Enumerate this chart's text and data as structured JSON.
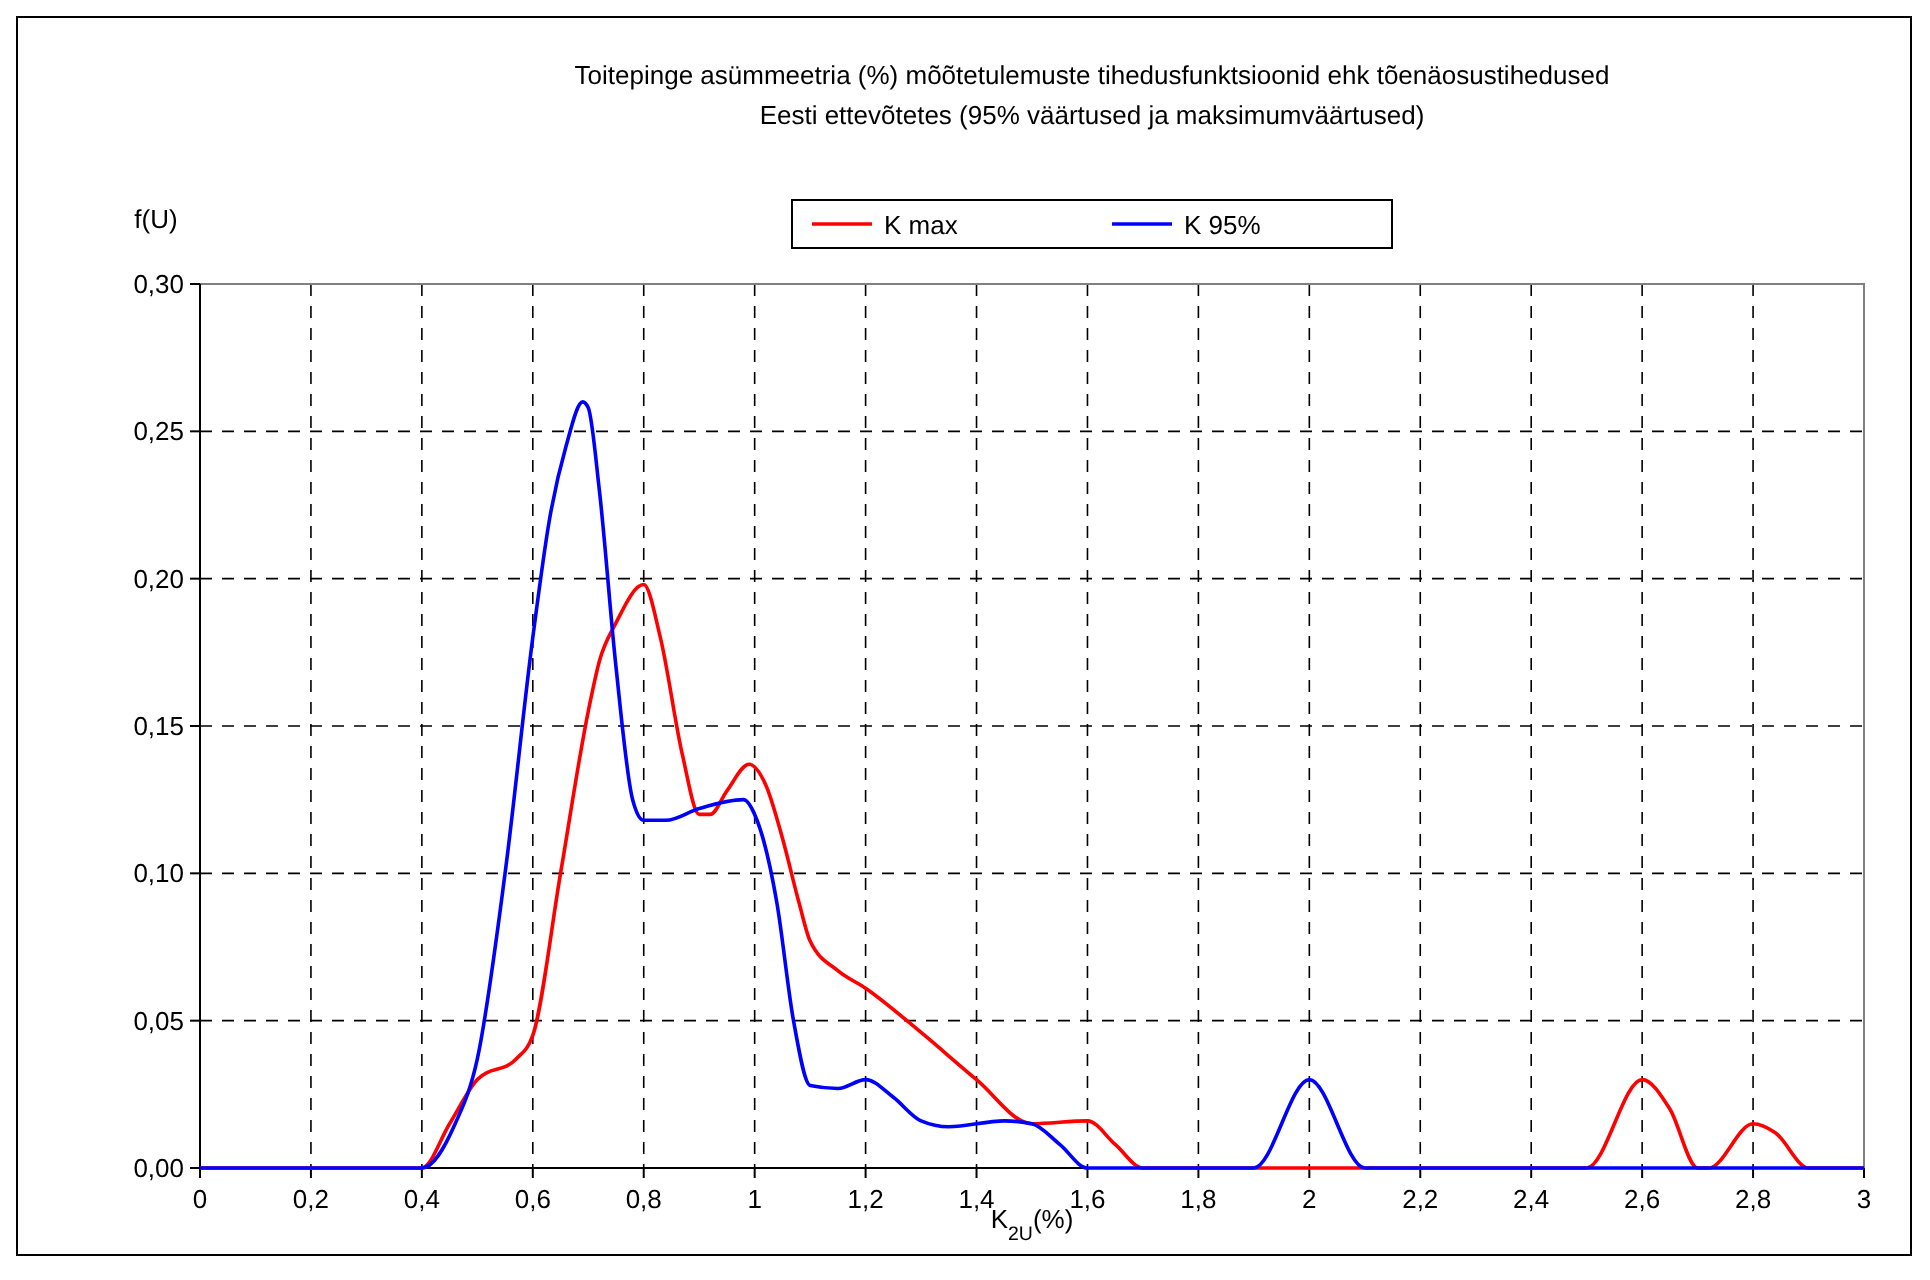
{
  "chart_data": {
    "type": "line",
    "title": "Toitepinge asümmeetria (%) mõõtetulemuste tihedusfunktsioonid ehk tõenäosustihedused\nEesti ettevõtetes (95% väärtused ja maksimumväärtused)",
    "xlabel": "K$_{2U}$(%)",
    "ylabel": "f(U)",
    "xlim": [
      0,
      3
    ],
    "ylim": [
      0,
      0.3
    ],
    "xticks": [
      0,
      {
        "value": 0.2,
        "label": "0,2"
      },
      {
        "value": 0.4,
        "label": "0,4"
      },
      {
        "value": 0.6,
        "label": "0,6"
      },
      {
        "value": 0.8,
        "label": "0,8"
      },
      1,
      {
        "value": 1.2,
        "label": "1,2"
      },
      {
        "value": 1.4,
        "label": "1,4"
      },
      {
        "value": 1.6,
        "label": "1,6"
      },
      {
        "value": 1.8,
        "label": "1,8"
      },
      2,
      {
        "value": 2.2,
        "label": "2,2"
      },
      {
        "value": 2.4,
        "label": "2,4"
      },
      {
        "value": 2.6,
        "label": "2,6"
      },
      {
        "value": 2.8,
        "label": "2,8"
      },
      3
    ],
    "yticks": [
      {
        "value": 0,
        "label": "0,00"
      },
      {
        "value": 0.05,
        "label": "0,05"
      },
      {
        "value": 0.1,
        "label": "0,10"
      },
      {
        "value": 0.15,
        "label": "0,15"
      },
      {
        "value": 0.2,
        "label": "0,20"
      },
      {
        "value": 0.25,
        "label": "0,25"
      },
      {
        "value": 0.3,
        "label": "0,30"
      }
    ],
    "grid": true,
    "legend": "top",
    "marker": "none",
    "line_style": "solid",
    "series": [
      {
        "name": "K max",
        "color": "#ff0000",
        "x": [
          0,
          0.3,
          0.4,
          0.45,
          0.5,
          0.57,
          0.6,
          0.65,
          0.7,
          0.72,
          0.75,
          0.8,
          0.83,
          0.87,
          0.9,
          0.92,
          0.95,
          0.99,
          1.02,
          1.05,
          1.08,
          1.1,
          1.15,
          1.2,
          1.3,
          1.4,
          1.5,
          1.6,
          1.65,
          1.7,
          2.5,
          2.6,
          2.65,
          2.7,
          2.72,
          2.8,
          2.84,
          2.9,
          3
        ],
        "values": [
          0,
          0,
          0,
          0.015,
          0.03,
          0.037,
          0.045,
          0.1,
          0.155,
          0.172,
          0.185,
          0.198,
          0.18,
          0.14,
          0.12,
          0.12,
          0.128,
          0.137,
          0.13,
          0.112,
          0.09,
          0.077,
          0.067,
          0.061,
          0.046,
          0.03,
          0.015,
          0.016,
          0.008,
          0,
          0,
          0.03,
          0.02,
          0,
          0,
          0.015,
          0.012,
          0,
          0
        ]
      },
      {
        "name": "K 95%",
        "color": "#0000ff",
        "x": [
          0,
          0.4,
          0.46,
          0.5,
          0.55,
          0.6,
          0.63,
          0.66,
          0.69,
          0.7,
          0.72,
          0.75,
          0.78,
          0.8,
          0.84,
          0.9,
          0.98,
          1.0,
          1.04,
          1.07,
          1.1,
          1.15,
          1.2,
          1.25,
          1.3,
          1.35,
          1.45,
          1.5,
          1.55,
          1.6,
          1.9,
          2.0,
          2.1,
          3
        ],
        "values": [
          0,
          0,
          0.015,
          0.037,
          0.1,
          0.18,
          0.22,
          0.245,
          0.26,
          0.258,
          0.23,
          0.17,
          0.125,
          0.118,
          0.118,
          0.122,
          0.125,
          0.12,
          0.09,
          0.05,
          0.028,
          0.027,
          0.03,
          0.024,
          0.016,
          0.014,
          0.016,
          0.015,
          0.008,
          0,
          0,
          0.03,
          0,
          0
        ]
      }
    ]
  }
}
